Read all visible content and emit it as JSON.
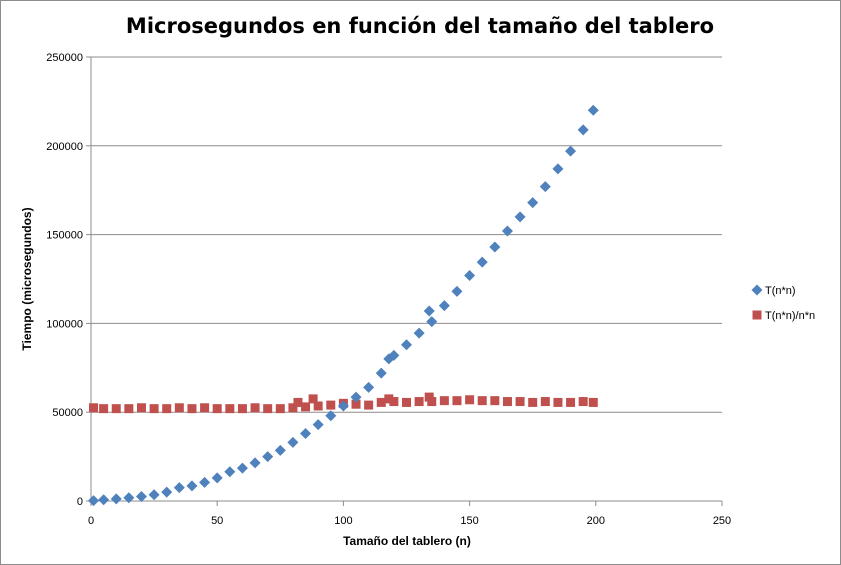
{
  "chart_data": {
    "type": "scatter",
    "title": "Microsegundos en función del tamaño del tablero",
    "xlabel": "Tamaño del tablero (n)",
    "ylabel": "Tiempo (microsegundos)",
    "xlim": [
      0,
      250
    ],
    "ylim": [
      0,
      250000
    ],
    "x_ticks": [
      "0",
      "50",
      "100",
      "150",
      "200",
      "250"
    ],
    "y_ticks": [
      "0",
      "50000",
      "100000",
      "150000",
      "200000",
      "250000"
    ],
    "grid": "horizontal",
    "legend_position": "right",
    "series": [
      {
        "name": "T(n*n)",
        "marker": "diamond",
        "color": "#4f81bd",
        "points": [
          [
            1,
            200
          ],
          [
            5,
            700
          ],
          [
            10,
            1200
          ],
          [
            15,
            1800
          ],
          [
            20,
            2500
          ],
          [
            25,
            3500
          ],
          [
            30,
            5000
          ],
          [
            35,
            7500
          ],
          [
            40,
            8500
          ],
          [
            45,
            10500
          ],
          [
            50,
            13000
          ],
          [
            55,
            16500
          ],
          [
            60,
            18500
          ],
          [
            65,
            21500
          ],
          [
            70,
            25000
          ],
          [
            75,
            28500
          ],
          [
            80,
            33000
          ],
          [
            85,
            38000
          ],
          [
            90,
            43000
          ],
          [
            95,
            48000
          ],
          [
            100,
            53500
          ],
          [
            105,
            58500
          ],
          [
            110,
            64000
          ],
          [
            115,
            72000
          ],
          [
            118,
            80000
          ],
          [
            120,
            82000
          ],
          [
            125,
            88000
          ],
          [
            130,
            94500
          ],
          [
            134,
            107000
          ],
          [
            135,
            101000
          ],
          [
            140,
            110000
          ],
          [
            145,
            118000
          ],
          [
            150,
            127000
          ],
          [
            155,
            134500
          ],
          [
            160,
            143000
          ],
          [
            165,
            152000
          ],
          [
            170,
            160000
          ],
          [
            175,
            168000
          ],
          [
            180,
            177000
          ],
          [
            185,
            187000
          ],
          [
            190,
            197000
          ],
          [
            195,
            209000
          ],
          [
            199,
            220000
          ]
        ]
      },
      {
        "name": "T(n*n)/n*n",
        "marker": "square",
        "color": "#c0504d",
        "points": [
          [
            1,
            52500
          ],
          [
            5,
            52000
          ],
          [
            10,
            52000
          ],
          [
            15,
            52000
          ],
          [
            20,
            52500
          ],
          [
            25,
            52000
          ],
          [
            30,
            52000
          ],
          [
            35,
            52500
          ],
          [
            40,
            52000
          ],
          [
            45,
            52500
          ],
          [
            50,
            52000
          ],
          [
            55,
            52000
          ],
          [
            60,
            52000
          ],
          [
            65,
            52500
          ],
          [
            70,
            52000
          ],
          [
            75,
            52000
          ],
          [
            80,
            52500
          ],
          [
            82,
            55500
          ],
          [
            85,
            53000
          ],
          [
            88,
            57500
          ],
          [
            90,
            53500
          ],
          [
            95,
            54000
          ],
          [
            100,
            55000
          ],
          [
            105,
            54500
          ],
          [
            110,
            54000
          ],
          [
            115,
            55500
          ],
          [
            118,
            57500
          ],
          [
            120,
            56000
          ],
          [
            125,
            55500
          ],
          [
            130,
            56000
          ],
          [
            134,
            58500
          ],
          [
            135,
            56000
          ],
          [
            140,
            56500
          ],
          [
            145,
            56500
          ],
          [
            150,
            57000
          ],
          [
            155,
            56500
          ],
          [
            160,
            56500
          ],
          [
            165,
            56000
          ],
          [
            170,
            56000
          ],
          [
            175,
            55500
          ],
          [
            180,
            56000
          ],
          [
            185,
            55500
          ],
          [
            190,
            55500
          ],
          [
            195,
            56000
          ],
          [
            199,
            55500
          ]
        ]
      }
    ]
  }
}
